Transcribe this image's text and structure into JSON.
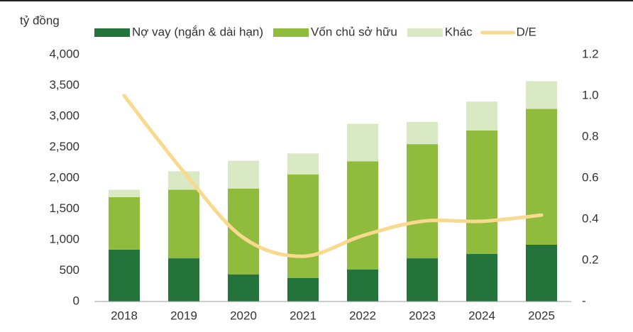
{
  "chart_data": {
    "type": "bar_line",
    "ylabel": "tỷ đồng",
    "categories": [
      "2018",
      "2019",
      "2020",
      "2021",
      "2022",
      "2023",
      "2024",
      "2025"
    ],
    "series": [
      {
        "name": "Nợ vay (ngắn & dài hạn)",
        "color": "#24733a",
        "type": "bar",
        "values": [
          840,
          700,
          440,
          380,
          520,
          700,
          770,
          920
        ]
      },
      {
        "name": "Vốn chủ sở hữu",
        "color": "#8fbc3c",
        "type": "bar",
        "values": [
          850,
          1110,
          1390,
          1680,
          1750,
          1850,
          2000,
          2200
        ]
      },
      {
        "name": "Khác",
        "color": "#d9e9c4",
        "type": "bar",
        "values": [
          120,
          300,
          450,
          340,
          610,
          360,
          470,
          450
        ]
      },
      {
        "name": "D/E",
        "color": "#f8d98d",
        "type": "line",
        "axis": "y2",
        "values": [
          1.0,
          0.63,
          0.31,
          0.22,
          0.32,
          0.39,
          0.39,
          0.42
        ]
      }
    ],
    "ylim": [
      0,
      4000
    ],
    "yticks": [
      0,
      500,
      {
        "value": 1000,
        "label": "1,000"
      },
      {
        "value": 1500,
        "label": "1,500"
      },
      {
        "value": 2000,
        "label": "2,000"
      },
      {
        "value": 2500,
        "label": "2,500"
      },
      {
        "value": 3000,
        "label": "3,000"
      },
      {
        "value": 3500,
        "label": "3,500"
      },
      {
        "value": 4000,
        "label": "4,000"
      }
    ],
    "y2lim": [
      0,
      1.2
    ],
    "y2ticks": [
      {
        "value": 0,
        "label": "-"
      },
      0.2,
      0.4,
      0.6,
      0.8,
      {
        "value": 1.0,
        "label": "1.0"
      },
      {
        "value": 1.2,
        "label": "1.2"
      }
    ],
    "grid": false,
    "legend": "top"
  }
}
